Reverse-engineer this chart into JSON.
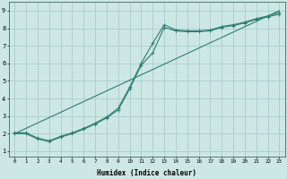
{
  "xlabel": "Humidex (Indice chaleur)",
  "ylabel": "",
  "bg_color": "#cde8e4",
  "grid_color": "#a8cccc",
  "line_color": "#2d7d70",
  "xlim": [
    -0.5,
    23.5
  ],
  "ylim": [
    0.7,
    9.5
  ],
  "xticks": [
    0,
    1,
    2,
    3,
    4,
    5,
    6,
    7,
    8,
    9,
    10,
    11,
    12,
    13,
    14,
    15,
    16,
    17,
    18,
    19,
    20,
    21,
    22,
    23
  ],
  "yticks": [
    1,
    2,
    3,
    4,
    5,
    6,
    7,
    8,
    9
  ],
  "line1_x": [
    0,
    1,
    2,
    3,
    4,
    5,
    6,
    7,
    8,
    9,
    10,
    11,
    12,
    13,
    14,
    15,
    16,
    17,
    18,
    19,
    20,
    21,
    22,
    23
  ],
  "line1_y": [
    2.0,
    2.0,
    1.7,
    1.55,
    1.8,
    2.0,
    2.25,
    2.55,
    2.9,
    3.35,
    4.55,
    5.9,
    6.6,
    8.05,
    7.85,
    7.8,
    7.8,
    7.85,
    8.05,
    8.15,
    8.3,
    8.5,
    8.65,
    8.8
  ],
  "line2_x": [
    0,
    1,
    2,
    3,
    4,
    5,
    6,
    7,
    8,
    9,
    10,
    11,
    12,
    13,
    14,
    15,
    16,
    17,
    18,
    19,
    20,
    21,
    22,
    23
  ],
  "line2_y": [
    2.05,
    2.05,
    1.75,
    1.6,
    1.85,
    2.05,
    2.3,
    2.6,
    2.95,
    3.45,
    4.65,
    6.0,
    7.15,
    8.2,
    7.9,
    7.85,
    7.85,
    7.9,
    8.1,
    8.2,
    8.35,
    8.55,
    8.7,
    8.9
  ],
  "line3_x": [
    0,
    23
  ],
  "line3_y": [
    2.0,
    9.0
  ],
  "xlabel_fontsize": 5.5,
  "tick_fontsize_x": 4.2,
  "tick_fontsize_y": 5.0,
  "linewidth": 0.8,
  "markersize": 2.5,
  "figwidth": 3.2,
  "figheight": 2.0,
  "dpi": 100
}
